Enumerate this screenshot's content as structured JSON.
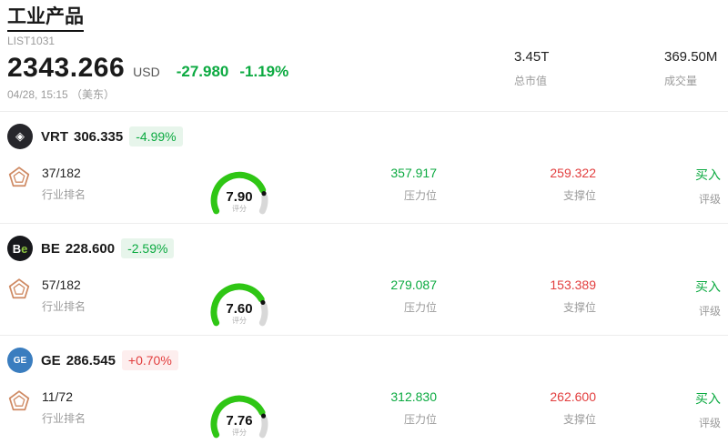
{
  "header": {
    "title": "工业产品",
    "subtitle": "LIST1031",
    "price": "2343.266",
    "currency": "USD",
    "change_amount": "-27.980",
    "change_pct": "-1.19%",
    "datetime": "04/28, 15:15 （美东）",
    "market_cap": {
      "value": "3.45T",
      "label": "总市值"
    },
    "volume": {
      "value": "369.50M",
      "label": "成交量"
    }
  },
  "colors": {
    "up": "#e23e3e",
    "down": "#0caa41",
    "gauge_green": "#2fc615",
    "gauge_rest": "#d8d8d8",
    "gauge_dot": "#111111"
  },
  "icons": {
    "industry_rank": "pentagon-badge-icon"
  },
  "cards": [
    {
      "ticker": "VRT",
      "price": "306.335",
      "change": "-4.99%",
      "direction": "down",
      "logo": {
        "bg": "#26262b",
        "text1": "◈",
        "color1": "#ffffff",
        "text2": "",
        "color2": "#ffffff",
        "font_size": "13px"
      },
      "rank": "37/182",
      "rank_label": "行业排名",
      "score": "7.90",
      "score_value": 7.9,
      "score_label": "评分",
      "resistance": "357.917",
      "resistance_label": "压力位",
      "support": "259.322",
      "support_label": "支撑位",
      "rating": "买入",
      "rating_label": "评级"
    },
    {
      "ticker": "BE",
      "price": "228.600",
      "change": "-2.59%",
      "direction": "down",
      "logo": {
        "bg": "#17181c",
        "text1": "B",
        "color1": "#ffffff",
        "text2": "e",
        "color2": "#8bc53f",
        "font_size": "13px"
      },
      "rank": "57/182",
      "rank_label": "行业排名",
      "score": "7.60",
      "score_value": 7.6,
      "score_label": "评分",
      "resistance": "279.087",
      "resistance_label": "压力位",
      "support": "153.389",
      "support_label": "支撑位",
      "rating": "买入",
      "rating_label": "评级"
    },
    {
      "ticker": "GE",
      "price": "286.545",
      "change": "+0.70%",
      "direction": "up",
      "logo": {
        "bg": "#3a7dbf",
        "text1": "GE",
        "color1": "#ffffff",
        "text2": "",
        "color2": "#ffffff",
        "font_size": "10px"
      },
      "rank": "11/72",
      "rank_label": "行业排名",
      "score": "7.76",
      "score_value": 7.76,
      "score_label": "评分",
      "resistance": "312.830",
      "resistance_label": "压力位",
      "support": "262.600",
      "support_label": "支撑位",
      "rating": "买入",
      "rating_label": "评级"
    }
  ]
}
